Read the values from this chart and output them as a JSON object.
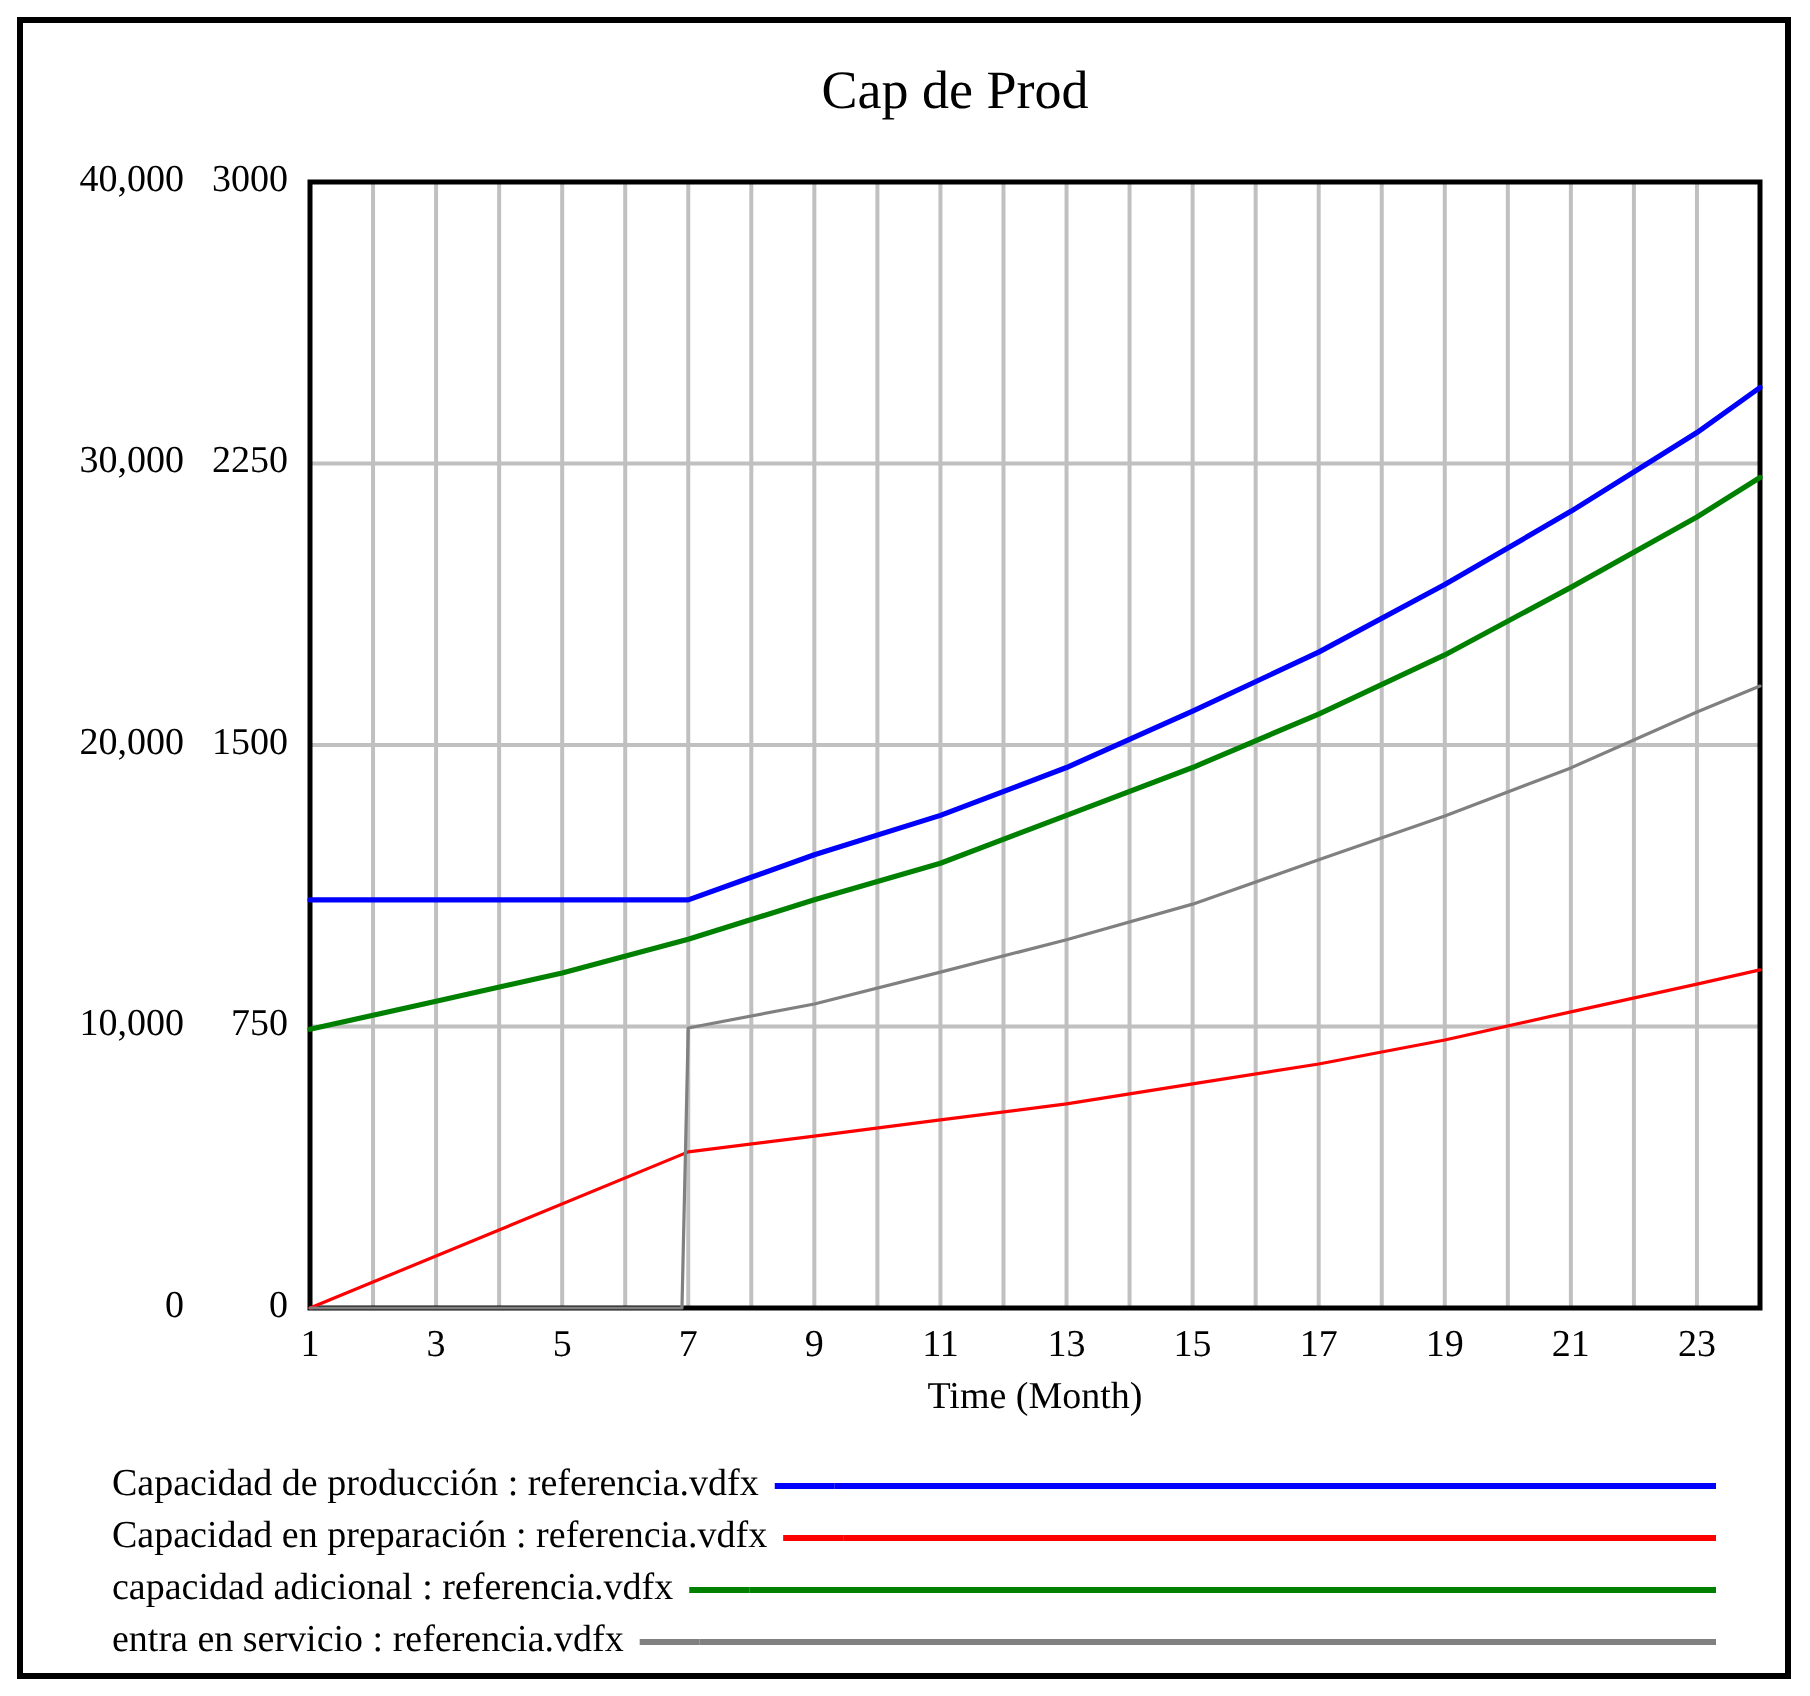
{
  "chart_data": {
    "type": "line",
    "title": "Cap de Prod",
    "xlabel": "Time (Month)",
    "xlim": [
      1,
      24
    ],
    "xticks": [
      1,
      {
        "value": 2,
        "label": null
      },
      3,
      {
        "value": 4,
        "label": null
      },
      5,
      {
        "value": 6,
        "label": null
      },
      7,
      {
        "value": 8,
        "label": null
      },
      9,
      {
        "value": 10,
        "label": null
      },
      11,
      {
        "value": 12,
        "label": null
      },
      13,
      {
        "value": 14,
        "label": null
      },
      15,
      {
        "value": 16,
        "label": null
      },
      17,
      {
        "value": 18,
        "label": null
      },
      19,
      {
        "value": 20,
        "label": null
      },
      21,
      {
        "value": 22,
        "label": null
      },
      23,
      {
        "value": 24,
        "label": null
      }
    ],
    "ylim": [
      0,
      40000
    ],
    "yticks": [
      0,
      {
        "value": 10000,
        "label": "10,000"
      },
      {
        "value": 20000,
        "label": "20,000"
      },
      {
        "value": 30000,
        "label": "30,000"
      },
      {
        "value": 40000,
        "label": "40,000"
      }
    ],
    "y2lim": [
      0,
      3000
    ],
    "y2ticks": [
      0,
      750,
      1500,
      2250,
      3000
    ],
    "grid": true,
    "legend": "bottom",
    "line_style": "solid",
    "marker": "none",
    "series": [
      {
        "name": "Capacidad de producción : referencia.vdfx",
        "color": "#0000ff",
        "x": [
          1,
          3,
          5,
          7,
          8,
          9,
          11,
          13,
          15,
          17,
          19,
          21,
          23,
          24
        ],
        "values": [
          14500,
          14500,
          14500,
          14500,
          15300,
          16100,
          17500,
          19200,
          21200,
          23300,
          25700,
          28300,
          31100,
          32700
        ]
      },
      {
        "name": "Capacidad en preparación : referencia.vdfx",
        "color": "#ff0000",
        "axis": "y2",
        "x": [
          1,
          7,
          9,
          11,
          13,
          15,
          17,
          19,
          21,
          23,
          24
        ],
        "values": [
          0,
          416,
          458,
          501,
          544,
          597,
          650,
          714,
          789,
          863,
          901
        ]
      },
      {
        "name": "capacidad adicional : referencia.vdfx",
        "color": "#008000",
        "x": [
          1,
          3,
          5,
          7,
          9,
          11,
          13,
          15,
          17,
          19,
          21,
          23,
          24
        ],
        "values": [
          9900,
          10900,
          11900,
          13100,
          14500,
          15800,
          17500,
          19200,
          21100,
          23200,
          25600,
          28100,
          29500
        ]
      },
      {
        "name": "entra en servicio : referencia.vdfx",
        "color": "#808080",
        "axis": "y2",
        "x": [
          1,
          6.9,
          7,
          9,
          11,
          13,
          15,
          17,
          19,
          21,
          23,
          24
        ],
        "values": [
          0,
          0,
          746,
          810,
          895,
          981,
          1076,
          1194,
          1311,
          1439,
          1588,
          1657
        ]
      }
    ]
  }
}
